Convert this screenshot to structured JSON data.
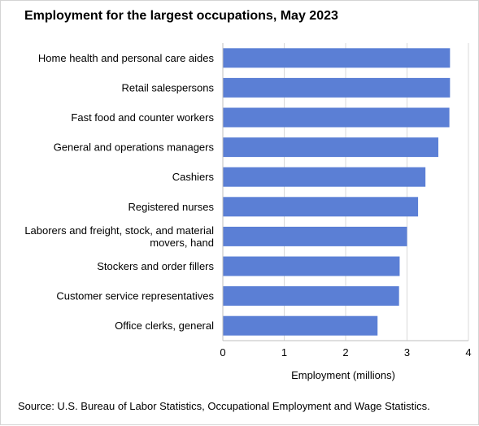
{
  "title": "Employment for the largest occupations, May 2023",
  "source": "Source: U.S. Bureau of Labor Statistics, Occupational Employment and Wage Statistics.",
  "colors": {
    "bar": "#5b7fd5",
    "gridline": "#d9d9d9",
    "axis": "#bfbfbf"
  },
  "chart_data": {
    "type": "bar",
    "orientation": "horizontal",
    "categories": [
      "Home health and personal care aides",
      "Retail salespersons",
      "Fast food and counter workers",
      "General and operations managers",
      "Cashiers",
      "Registered nurses",
      "Laborers and freight, stock, and material movers, hand",
      "Stockers and order fillers",
      "Customer service representatives",
      "Office clerks, general"
    ],
    "category_lines": [
      [
        "Home health and personal care aides"
      ],
      [
        "Retail salespersons"
      ],
      [
        "Fast food and counter workers"
      ],
      [
        "General and operations managers"
      ],
      [
        "Cashiers"
      ],
      [
        "Registered nurses"
      ],
      [
        "Laborers and freight, stock, and material",
        "movers, hand"
      ],
      [
        "Stockers and order fillers"
      ],
      [
        "Customer service representatives"
      ],
      [
        "Office clerks, general"
      ]
    ],
    "values": [
      3.7,
      3.7,
      3.69,
      3.51,
      3.3,
      3.18,
      3.0,
      2.88,
      2.87,
      2.52
    ],
    "xlabel": "Employment (millions)",
    "ylabel": "",
    "xlim": [
      0,
      4
    ],
    "xticks": [
      "0",
      "1",
      "2",
      "3",
      "4"
    ],
    "grid": true
  }
}
